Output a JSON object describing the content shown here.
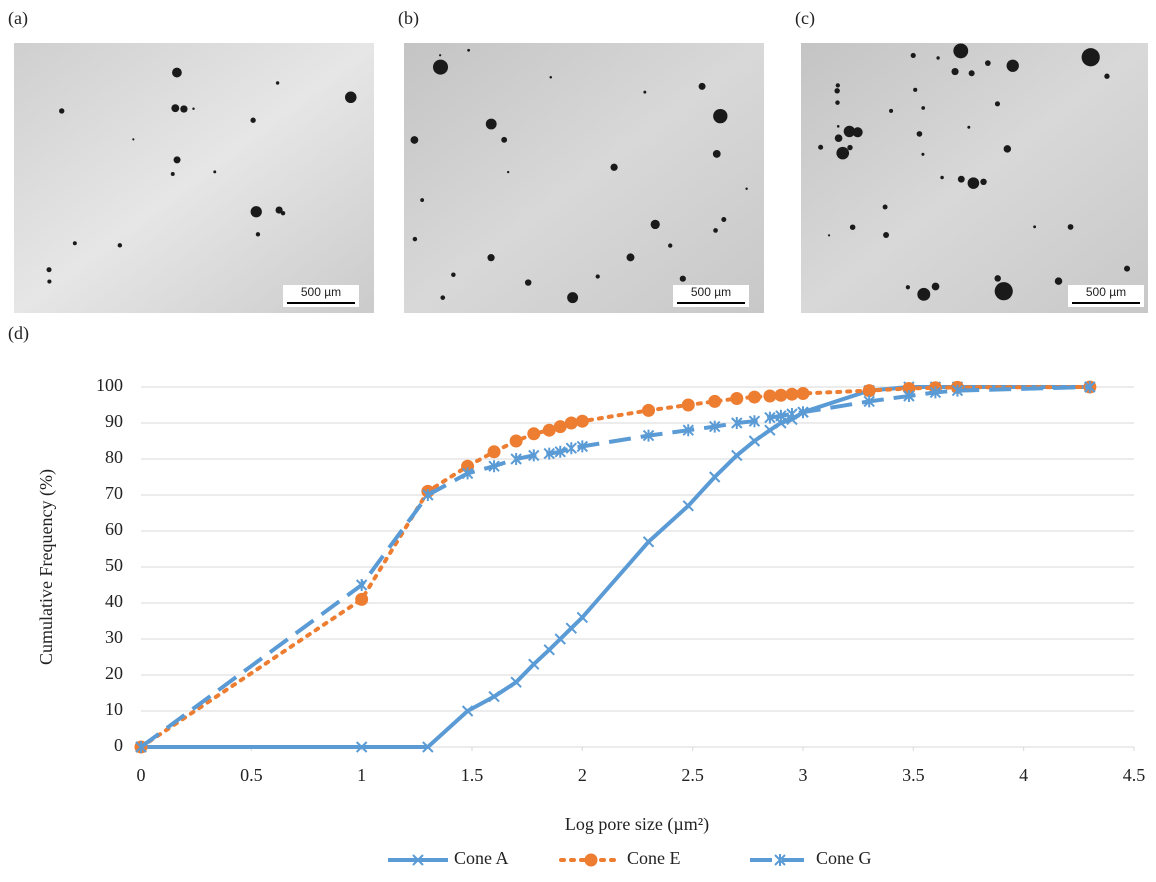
{
  "panels": {
    "labels": [
      "(a)",
      "(b)",
      "(c)",
      "(d)"
    ],
    "scale_bars": [
      "500 µm",
      "500 µm",
      "500 µm"
    ]
  },
  "chart_data": {
    "type": "line",
    "y_label": "Cumulative Frequency  (%)",
    "x_label": "Log pore size (µm²)",
    "xlim": [
      0,
      4.5
    ],
    "xticks": [
      0,
      0.5,
      1,
      1.5,
      2,
      2.5,
      3,
      3.5,
      4,
      4.5
    ],
    "ylim": [
      0,
      100
    ],
    "yticks": [
      0,
      10,
      20,
      30,
      40,
      50,
      60,
      70,
      80,
      90,
      100
    ],
    "grid": true,
    "series": [
      {
        "name": "Cone A",
        "color": "#5b9bd5",
        "dash": "solid",
        "marker": "x",
        "x": [
          0,
          1,
          1.3,
          1.48,
          1.6,
          1.7,
          1.78,
          1.85,
          1.9,
          1.95,
          2.0,
          2.3,
          2.48,
          2.6,
          2.7,
          2.78,
          2.85,
          2.9,
          2.95,
          3.0,
          3.3,
          3.48,
          3.6,
          3.7,
          4.3
        ],
        "values": [
          0,
          0,
          0,
          10,
          14,
          18,
          23,
          27,
          30,
          33,
          36,
          57,
          67,
          75,
          81,
          85,
          88,
          90,
          91,
          93,
          99,
          100,
          100,
          100,
          100
        ]
      },
      {
        "name": "Cone E",
        "color": "#ed7d31",
        "dash": "dotted",
        "marker": "circle",
        "x": [
          0,
          1,
          1.3,
          1.48,
          1.6,
          1.7,
          1.78,
          1.85,
          1.9,
          1.95,
          2.0,
          2.3,
          2.48,
          2.6,
          2.7,
          2.78,
          2.85,
          2.9,
          2.95,
          3.0,
          3.3,
          3.48,
          3.6,
          3.7,
          4.3
        ],
        "values": [
          0,
          41,
          71,
          78,
          82,
          85,
          87,
          88,
          89,
          90,
          90.5,
          93.5,
          95,
          96,
          96.8,
          97.2,
          97.5,
          97.7,
          98,
          98.2,
          99,
          99.6,
          99.8,
          99.9,
          100
        ]
      },
      {
        "name": "Cone G",
        "color": "#5b9bd5",
        "dash": "dashed",
        "marker": "asterisk",
        "x": [
          0,
          1,
          1.3,
          1.48,
          1.6,
          1.7,
          1.78,
          1.85,
          1.9,
          1.95,
          2.0,
          2.3,
          2.48,
          2.6,
          2.7,
          2.78,
          2.85,
          2.9,
          2.95,
          3.0,
          3.3,
          3.48,
          3.6,
          3.7,
          4.3
        ],
        "values": [
          0,
          45,
          70,
          76,
          78,
          80,
          81,
          81.5,
          82,
          83,
          83.5,
          86.5,
          88,
          89,
          90,
          90.5,
          91.5,
          92,
          92.5,
          93,
          96,
          97.5,
          98.5,
          99,
          100
        ]
      }
    ]
  }
}
